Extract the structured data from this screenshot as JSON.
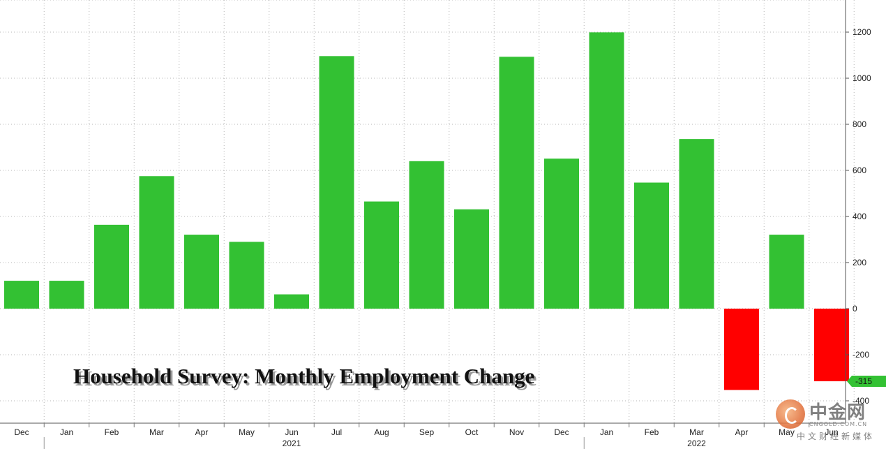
{
  "chart_data": {
    "type": "bar",
    "title": "Household Survey: Monthly Employment Change",
    "categories": [
      "Dec",
      "Jan",
      "Feb",
      "Mar",
      "Apr",
      "May",
      "Jun",
      "Jul",
      "Aug",
      "Sep",
      "Oct",
      "Nov",
      "Dec",
      "Jan",
      "Feb",
      "Mar",
      "Apr",
      "May",
      "Jun"
    ],
    "values": [
      121,
      121,
      364,
      575,
      321,
      290,
      62,
      1096,
      465,
      640,
      431,
      1093,
      651,
      1199,
      547,
      736,
      -353,
      321,
      -315
    ],
    "year_labels": [
      {
        "label": "2021",
        "category_index": 6
      },
      {
        "label": "2022",
        "category_index": 15
      }
    ],
    "y_ticks": [
      -400,
      -200,
      0,
      200,
      400,
      600,
      800,
      1000,
      1200
    ],
    "ylim": [
      -430,
      1330
    ],
    "last_value_label": "-315",
    "xlabel": "",
    "ylabel": "",
    "grid": true,
    "colors": {
      "positive": "#33c133",
      "negative": "#ff0000",
      "callout": "#33c133",
      "grid": "#b5b5b5"
    }
  },
  "watermark": {
    "name": "中金网",
    "url": "CNGOLD.COM.CN",
    "slogan": "中文财经新媒体"
  }
}
